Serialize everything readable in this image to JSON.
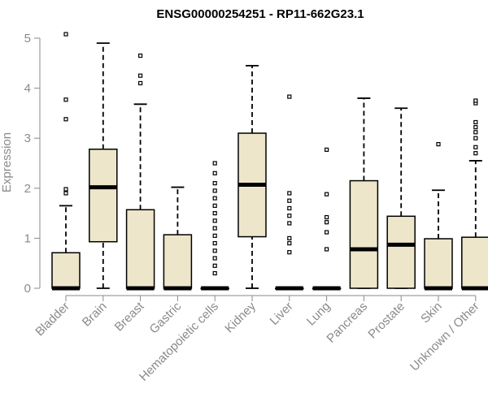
{
  "chart_data": {
    "type": "box",
    "title": "ENSG00000254251 - RP11-662G23.1",
    "xlabel": "",
    "ylabel": "Expression",
    "ylim": [
      0,
      5.2
    ],
    "yticks": [
      0,
      1,
      2,
      3,
      4,
      5
    ],
    "grid": false,
    "box_fill": "#ede6cb",
    "categories": [
      "Bladder",
      "Brain",
      "Breast",
      "Gastric",
      "Hematopoietic cells",
      "Kidney",
      "Liver",
      "Lung",
      "Pancreas",
      "Prostate",
      "Skin",
      "Unknown / Other"
    ],
    "boxes": [
      {
        "category": "Bladder",
        "whisker_low": 0,
        "q1": 0,
        "median": 0,
        "q3": 0.71,
        "whisker_high": 1.65,
        "outliers": [
          1.9,
          1.98,
          3.38,
          3.77,
          5.08
        ]
      },
      {
        "category": "Brain",
        "whisker_low": 0,
        "q1": 0.93,
        "median": 2.02,
        "q3": 2.78,
        "whisker_high": 4.9,
        "outliers": []
      },
      {
        "category": "Breast",
        "whisker_low": 0,
        "q1": 0,
        "median": 0,
        "q3": 1.57,
        "whisker_high": 3.68,
        "outliers": [
          4.1,
          4.25,
          4.65
        ]
      },
      {
        "category": "Gastric",
        "whisker_low": 0,
        "q1": 0,
        "median": 0,
        "q3": 1.07,
        "whisker_high": 2.02,
        "outliers": []
      },
      {
        "category": "Hematopoietic cells",
        "whisker_low": 0,
        "q1": 0,
        "median": 0,
        "q3": 0,
        "whisker_high": 0,
        "outliers": [
          0.3,
          0.45,
          0.6,
          0.75,
          0.9,
          1.05,
          1.2,
          1.35,
          1.5,
          1.65,
          1.8,
          1.95,
          2.1,
          2.3,
          2.5
        ]
      },
      {
        "category": "Kidney",
        "whisker_low": 0,
        "q1": 1.03,
        "median": 2.07,
        "q3": 3.1,
        "whisker_high": 4.45,
        "outliers": []
      },
      {
        "category": "Liver",
        "whisker_low": 0,
        "q1": 0,
        "median": 0,
        "q3": 0,
        "whisker_high": 0,
        "outliers": [
          0.72,
          0.9,
          1.0,
          1.3,
          1.45,
          1.6,
          1.75,
          1.9,
          3.83
        ]
      },
      {
        "category": "Lung",
        "whisker_low": 0,
        "q1": 0,
        "median": 0,
        "q3": 0,
        "whisker_high": 0,
        "outliers": [
          0.78,
          1.12,
          1.32,
          1.42,
          1.88,
          2.77
        ]
      },
      {
        "category": "Pancreas",
        "whisker_low": 0,
        "q1": 0,
        "median": 0.78,
        "q3": 2.15,
        "whisker_high": 3.8,
        "outliers": []
      },
      {
        "category": "Prostate",
        "whisker_low": 0,
        "q1": 0,
        "median": 0.87,
        "q3": 1.44,
        "whisker_high": 3.6,
        "outliers": []
      },
      {
        "category": "Skin",
        "whisker_low": 0,
        "q1": 0,
        "median": 0,
        "q3": 0.99,
        "whisker_high": 1.96,
        "outliers": [
          2.88
        ]
      },
      {
        "category": "Unknown / Other",
        "whisker_low": 0,
        "q1": 0,
        "median": 0,
        "q3": 1.02,
        "whisker_high": 2.55,
        "outliers": [
          2.7,
          2.82,
          3.0,
          3.12,
          3.22,
          3.32,
          3.7,
          3.75
        ]
      }
    ]
  }
}
